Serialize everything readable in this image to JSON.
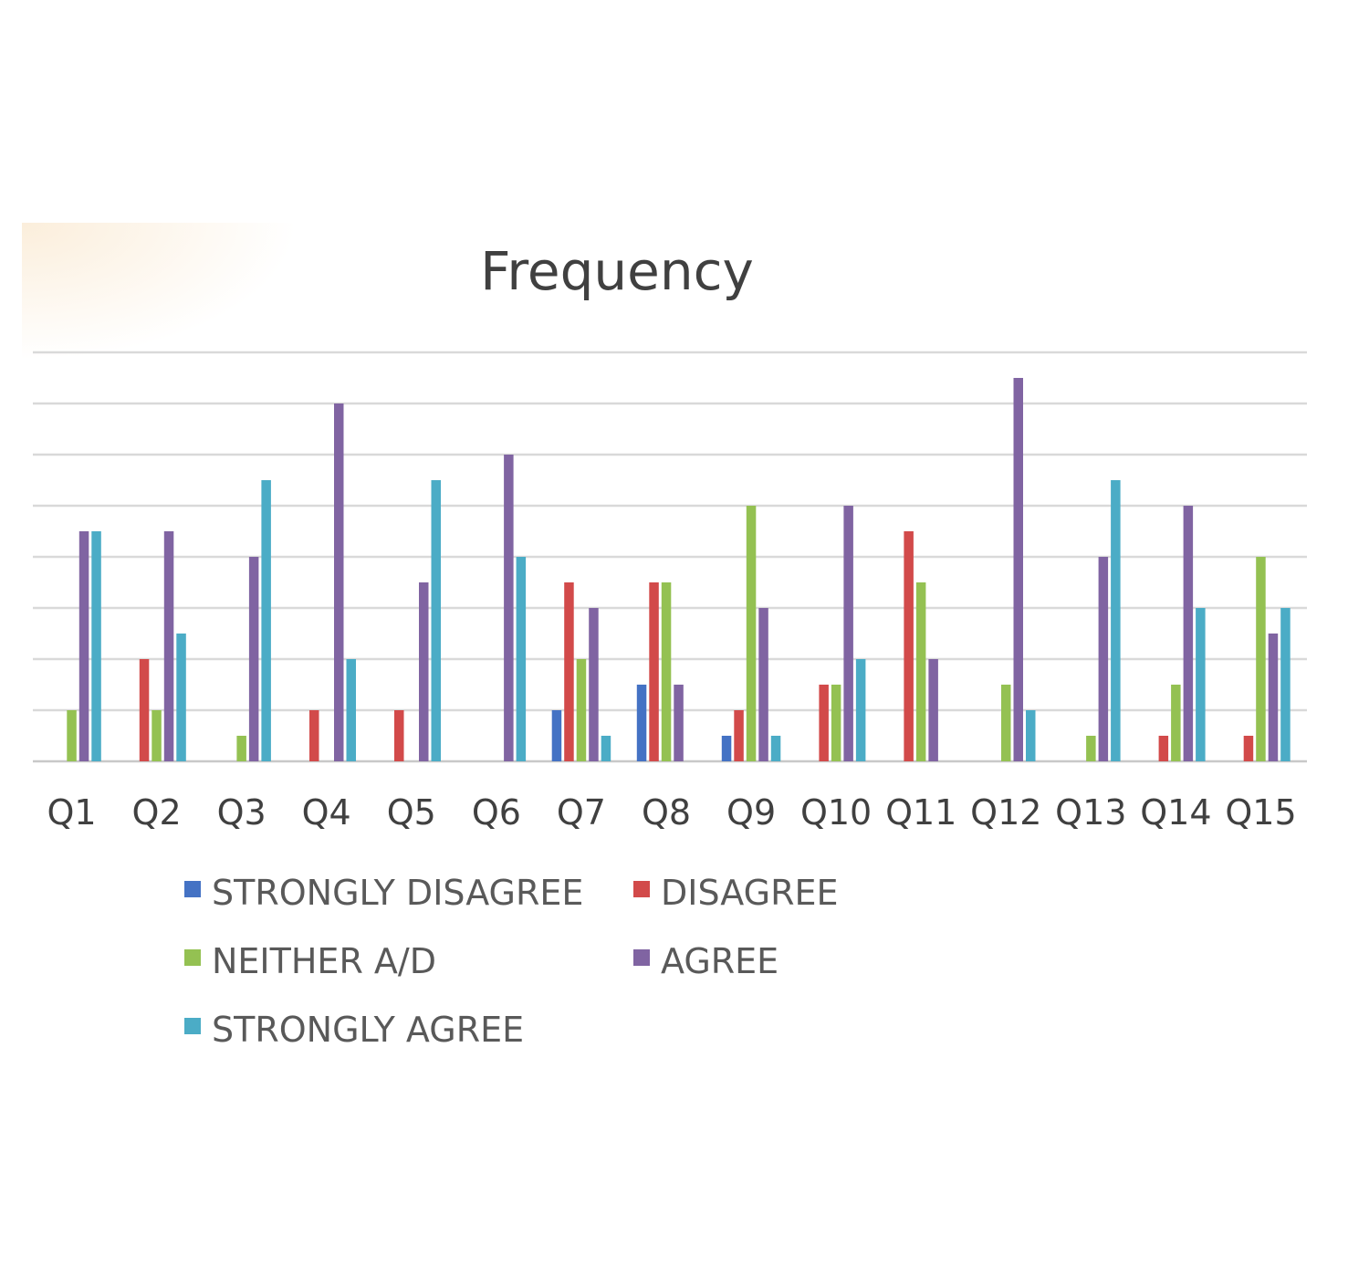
{
  "chart_data": {
    "type": "bar",
    "title": "Frequency",
    "xlabel": "",
    "ylabel": "",
    "categories": [
      "Q1",
      "Q2",
      "Q3",
      "Q4",
      "Q5",
      "Q6",
      "Q7",
      "Q8",
      "Q9",
      "Q10",
      "Q11",
      "Q12",
      "Q13",
      "Q14",
      "Q15"
    ],
    "ylim": [
      0,
      16
    ],
    "grid": true,
    "legend_position": "bottom",
    "series": [
      {
        "name": "STRONGLY DISAGREE",
        "color": "#4472c4",
        "values": [
          0,
          0,
          0,
          0,
          0,
          0,
          2,
          3,
          1,
          0,
          0,
          0,
          0,
          0,
          0
        ]
      },
      {
        "name": "DISAGREE",
        "color": "#d24a4a",
        "values": [
          0,
          4,
          0,
          2,
          2,
          0,
          7,
          7,
          2,
          3,
          9,
          0,
          0,
          1,
          1
        ]
      },
      {
        "name": "NEITHER A/D",
        "color": "#94c152",
        "values": [
          2,
          2,
          1,
          0,
          0,
          0,
          4,
          7,
          10,
          3,
          7,
          3,
          1,
          3,
          8
        ]
      },
      {
        "name": "AGREE",
        "color": "#8064a2",
        "values": [
          9,
          9,
          8,
          14,
          7,
          12,
          6,
          3,
          6,
          10,
          4,
          15,
          8,
          10,
          5
        ]
      },
      {
        "name": "STRONGLY AGREE",
        "color": "#4bacc6",
        "values": [
          9,
          5,
          11,
          4,
          11,
          8,
          1,
          0,
          1,
          4,
          0,
          2,
          11,
          6,
          6
        ]
      }
    ]
  }
}
